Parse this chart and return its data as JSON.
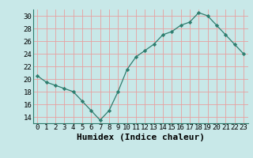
{
  "x": [
    0,
    1,
    2,
    3,
    4,
    5,
    6,
    7,
    8,
    9,
    10,
    11,
    12,
    13,
    14,
    15,
    16,
    17,
    18,
    19,
    20,
    21,
    22,
    23
  ],
  "y": [
    20.5,
    19.5,
    19.0,
    18.5,
    18.0,
    16.5,
    15.0,
    13.5,
    15.0,
    18.0,
    21.5,
    23.5,
    24.5,
    25.5,
    27.0,
    27.5,
    28.5,
    29.0,
    30.5,
    30.0,
    28.5,
    27.0,
    25.5,
    24.0
  ],
  "line_color": "#2e7d6e",
  "marker": "D",
  "marker_size": 2.2,
  "bg_color": "#c8e8e8",
  "grid_color": "#e8a0a0",
  "xlabel": "Humidex (Indice chaleur)",
  "xlim": [
    -0.5,
    23.5
  ],
  "ylim": [
    13,
    31
  ],
  "yticks": [
    14,
    16,
    18,
    20,
    22,
    24,
    26,
    28,
    30
  ],
  "xticks": [
    0,
    1,
    2,
    3,
    4,
    5,
    6,
    7,
    8,
    9,
    10,
    11,
    12,
    13,
    14,
    15,
    16,
    17,
    18,
    19,
    20,
    21,
    22,
    23
  ],
  "tick_fontsize": 6.5,
  "xlabel_fontsize": 8.0
}
